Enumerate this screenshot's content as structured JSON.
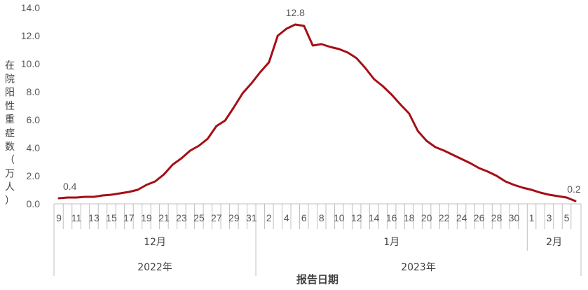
{
  "chart_data": {
    "type": "line",
    "title": "",
    "xlabel": "报告日期",
    "ylabel": "在院阳性重症数（万人）",
    "ylim": [
      0,
      14
    ],
    "yticks": [
      "0.0",
      "2.0",
      "4.0",
      "6.0",
      "8.0",
      "10.0",
      "12.0",
      "14.0"
    ],
    "line_color": "#A50F15",
    "x_ticks": [
      {
        "i": 0,
        "label": "9"
      },
      {
        "i": 2,
        "label": "11"
      },
      {
        "i": 4,
        "label": "13"
      },
      {
        "i": 6,
        "label": "15"
      },
      {
        "i": 8,
        "label": "17"
      },
      {
        "i": 10,
        "label": "19"
      },
      {
        "i": 12,
        "label": "21"
      },
      {
        "i": 14,
        "label": "23"
      },
      {
        "i": 16,
        "label": "25"
      },
      {
        "i": 18,
        "label": "27"
      },
      {
        "i": 20,
        "label": "29"
      },
      {
        "i": 22,
        "label": "31"
      },
      {
        "i": 24,
        "label": "2"
      },
      {
        "i": 26,
        "label": "4"
      },
      {
        "i": 28,
        "label": "6"
      },
      {
        "i": 30,
        "label": "8"
      },
      {
        "i": 32,
        "label": "10"
      },
      {
        "i": 34,
        "label": "12"
      },
      {
        "i": 36,
        "label": "14"
      },
      {
        "i": 38,
        "label": "16"
      },
      {
        "i": 40,
        "label": "18"
      },
      {
        "i": 42,
        "label": "20"
      },
      {
        "i": 44,
        "label": "22"
      },
      {
        "i": 46,
        "label": "24"
      },
      {
        "i": 48,
        "label": "26"
      },
      {
        "i": 50,
        "label": "28"
      },
      {
        "i": 52,
        "label": "30"
      },
      {
        "i": 54,
        "label": "1"
      },
      {
        "i": 56,
        "label": "3"
      },
      {
        "i": 58,
        "label": "5"
      }
    ],
    "months": [
      {
        "label": "12月",
        "start": 0,
        "end": 22
      },
      {
        "label": "1月",
        "start": 23,
        "end": 53
      },
      {
        "label": "2月",
        "start": 54,
        "end": 59
      }
    ],
    "years": [
      {
        "label": "2022年",
        "start": 0,
        "end": 22
      },
      {
        "label": "2023年",
        "start": 23,
        "end": 59
      }
    ],
    "series": [
      {
        "name": "在院阳性重症数",
        "values": [
          0.4,
          0.45,
          0.45,
          0.5,
          0.5,
          0.6,
          0.65,
          0.75,
          0.85,
          1.0,
          1.35,
          1.6,
          2.1,
          2.8,
          3.25,
          3.8,
          4.15,
          4.65,
          5.55,
          5.95,
          6.9,
          7.9,
          8.6,
          9.4,
          10.1,
          12.0,
          12.5,
          12.8,
          12.7,
          11.3,
          11.4,
          11.2,
          11.05,
          10.8,
          10.4,
          9.7,
          8.9,
          8.4,
          7.8,
          7.1,
          6.45,
          5.2,
          4.5,
          4.05,
          3.8,
          3.5,
          3.2,
          2.9,
          2.55,
          2.3,
          2.0,
          1.6,
          1.35,
          1.15,
          1.0,
          0.8,
          0.65,
          0.55,
          0.45,
          0.2
        ]
      }
    ],
    "data_labels": [
      {
        "i": 0,
        "text": "0.4"
      },
      {
        "i": 27,
        "text": "12.8"
      },
      {
        "i": 59,
        "text": "0.2"
      }
    ]
  }
}
